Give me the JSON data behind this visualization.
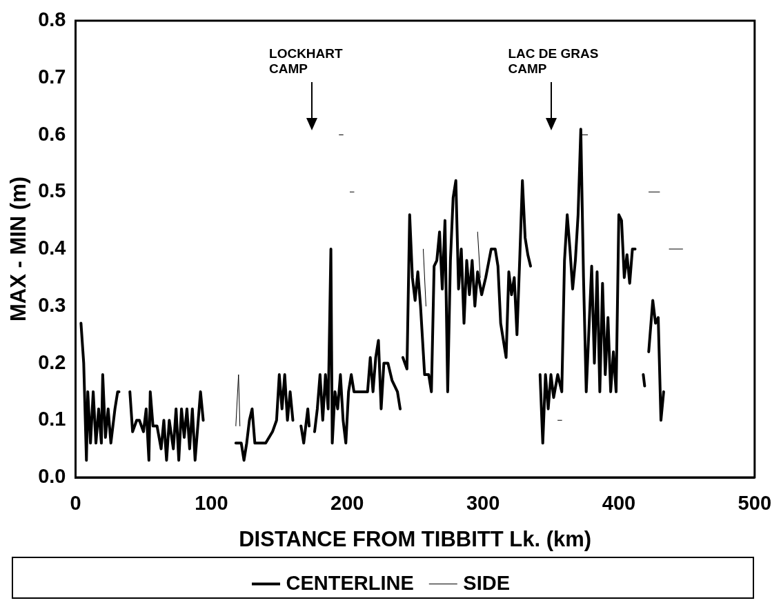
{
  "chart_data": {
    "type": "line",
    "xlabel": "DISTANCE FROM TIBBITT Lk. (km)",
    "ylabel": "MAX - MIN (m)",
    "xlim": [
      0,
      500
    ],
    "xticks": [
      0,
      100,
      200,
      300,
      400,
      500
    ],
    "ylim": [
      0,
      0.8
    ],
    "yticks": [
      {
        "value": 0,
        "label": "0.0"
      },
      0.1,
      0.2,
      0.3,
      0.4,
      0.5,
      0.6,
      0.7,
      0.8
    ],
    "grid": false,
    "legend": "bottom",
    "marker": "none",
    "annotations": [
      "LOCKHART CAMP",
      "LAC DE GRAS CAMP"
    ],
    "series": [
      {
        "name": "CENTERLINE",
        "color": "#000000",
        "line_style": "solid",
        "x": [
          4,
          6,
          8,
          9,
          11,
          13,
          15,
          17,
          19,
          20,
          22,
          24,
          26,
          29,
          31,
          32,
          36,
          40,
          42,
          45,
          47,
          50,
          52,
          54,
          55,
          57,
          60,
          63,
          65,
          67,
          69,
          72,
          74,
          76,
          78,
          80,
          82,
          84,
          86,
          88,
          90,
          92,
          94,
          110,
          118,
          122,
          124,
          126,
          128,
          130,
          132,
          140,
          145,
          148,
          150,
          152,
          154,
          156,
          158,
          160,
          163,
          166,
          168,
          171,
          172,
          174,
          176,
          178,
          180,
          182,
          184,
          186,
          188,
          189,
          191,
          193,
          195,
          197,
          199,
          201,
          203,
          205,
          215,
          217,
          219,
          221,
          223,
          225,
          227,
          230,
          233,
          237,
          239,
          240,
          241,
          244,
          246,
          248,
          250,
          252,
          254,
          255,
          257,
          260,
          262,
          264,
          266,
          268,
          270,
          272,
          274,
          276,
          278,
          280,
          282,
          284,
          286,
          288,
          290,
          292,
          294,
          296,
          299,
          302,
          306,
          309,
          311,
          313,
          315,
          317,
          319,
          321,
          323,
          325,
          327,
          329,
          331,
          333,
          335,
          338,
          342,
          344,
          346,
          348,
          350,
          352,
          355,
          358,
          360,
          362,
          364,
          366,
          368,
          370,
          372,
          374,
          376,
          378,
          380,
          382,
          384,
          386,
          388,
          390,
          392,
          394,
          396,
          398,
          400,
          402,
          404,
          406,
          408,
          410,
          412,
          415,
          418,
          419,
          420,
          422,
          425,
          427,
          429,
          431,
          433
        ],
        "values": [
          0.27,
          0.2,
          0.03,
          0.15,
          0.06,
          0.15,
          0.06,
          0.12,
          0.06,
          0.18,
          0.07,
          0.12,
          0.06,
          0.12,
          0.15,
          0.15,
          null,
          0.15,
          0.08,
          0.1,
          0.1,
          0.08,
          0.12,
          0.03,
          0.15,
          0.09,
          0.09,
          0.05,
          0.1,
          0.03,
          0.1,
          0.05,
          0.12,
          0.03,
          0.12,
          0.07,
          0.12,
          0.05,
          0.12,
          0.03,
          0.09,
          0.15,
          0.1,
          null,
          0.06,
          0.06,
          0.03,
          0.06,
          0.1,
          0.12,
          0.06,
          0.06,
          0.08,
          0.1,
          0.18,
          0.12,
          0.18,
          0.1,
          0.15,
          0.1,
          null,
          0.09,
          0.06,
          0.12,
          0.09,
          null,
          0.08,
          0.12,
          0.18,
          0.1,
          0.18,
          0.12,
          0.4,
          0.06,
          0.15,
          0.12,
          0.18,
          0.1,
          0.06,
          0.15,
          0.18,
          0.15,
          0.15,
          0.21,
          0.15,
          0.21,
          0.24,
          0.12,
          0.2,
          0.2,
          0.17,
          0.15,
          0.12,
          null,
          0.21,
          0.19,
          0.46,
          0.35,
          0.31,
          0.36,
          0.3,
          0.26,
          0.18,
          0.18,
          0.15,
          0.37,
          0.38,
          0.43,
          0.33,
          0.45,
          0.15,
          0.38,
          0.49,
          0.52,
          0.33,
          0.4,
          0.27,
          0.38,
          0.32,
          0.38,
          0.3,
          0.36,
          0.32,
          0.35,
          0.4,
          0.4,
          0.37,
          0.27,
          0.24,
          0.21,
          0.36,
          0.32,
          0.35,
          0.25,
          0.38,
          0.52,
          0.42,
          0.39,
          0.37,
          null,
          0.18,
          0.06,
          0.18,
          0.12,
          0.18,
          0.14,
          0.18,
          0.15,
          0.38,
          0.46,
          0.4,
          0.33,
          0.38,
          0.46,
          0.61,
          0.35,
          0.15,
          0.26,
          0.37,
          0.2,
          0.36,
          0.15,
          0.34,
          0.18,
          0.28,
          0.15,
          0.22,
          0.15,
          0.46,
          0.45,
          0.35,
          0.39,
          0.34,
          0.4,
          0.4,
          null,
          0.18,
          0.16,
          null,
          0.22,
          0.31,
          0.27,
          0.28,
          0.1,
          0.15
        ]
      },
      {
        "name": "SIDE",
        "color": "#000000",
        "line_style": "solid",
        "x": [
          118,
          120,
          121,
          150,
          194,
          197,
          199,
          202,
          205,
          230,
          256,
          258,
          280,
          296,
          298,
          330,
          355,
          358,
          365,
          373,
          377,
          400,
          422,
          430,
          433,
          437,
          447
        ],
        "values": [
          0.09,
          0.18,
          0.09,
          null,
          0.6,
          0.6,
          null,
          0.5,
          0.5,
          null,
          0.4,
          0.3,
          null,
          0.43,
          0.35,
          null,
          0.1,
          0.1,
          null,
          0.6,
          0.6,
          null,
          0.5,
          0.5,
          null,
          0.4,
          0.4
        ]
      }
    ]
  }
}
